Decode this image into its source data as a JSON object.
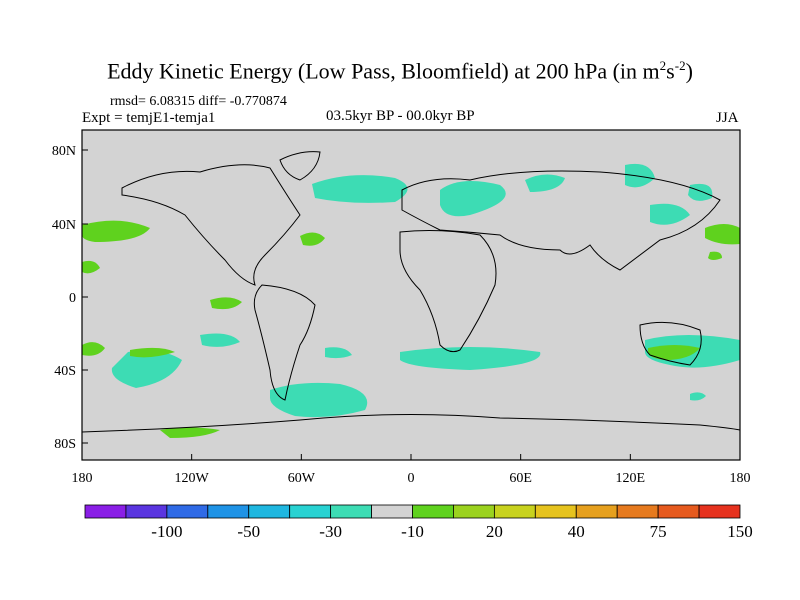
{
  "title": {
    "main": "Eddy Kinetic Energy (Low Pass, Bloomfield) at 200 hPa (in m",
    "sup1": "2",
    "mid": "s",
    "sup2": "-2",
    "end": ")"
  },
  "stats_line": "rmsd= 6.08315 diff= -0.770874",
  "expt_line": "Expt = temjE1-temja1",
  "period_line": "03.5kyr BP - 00.0kyr BP",
  "season": "JJA",
  "map": {
    "lat_labels": [
      "80N",
      "40N",
      "0",
      "40S",
      "80S"
    ],
    "lon_labels": [
      "180",
      "120W",
      "60W",
      "0",
      "60E",
      "120E",
      "180"
    ],
    "background_color": "#d3d3d3"
  },
  "colorbar": {
    "colors": [
      "#8a1ee6",
      "#5a35e0",
      "#2f6ae6",
      "#1f93e6",
      "#1fb7e0",
      "#28d2d2",
      "#3ddcb4",
      "#d3d3d3",
      "#5fd21e",
      "#9bd21e",
      "#c8d21e",
      "#e6c31e",
      "#e6a01e",
      "#e67a1e",
      "#e65a1e",
      "#e6321e"
    ],
    "labels": [
      "-100",
      "-50",
      "-30",
      "-10",
      "20",
      "40",
      "75",
      "150"
    ]
  }
}
